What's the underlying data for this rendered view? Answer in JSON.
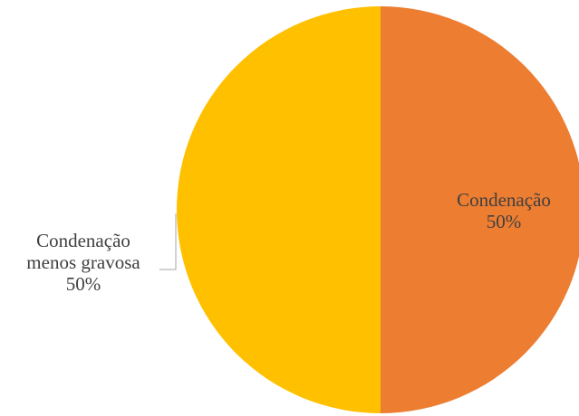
{
  "chart_data": {
    "type": "pie",
    "slices": [
      {
        "name": "Condenação",
        "value": 50,
        "percent_label": "50%",
        "color": "#ED7D31",
        "label_lines": [
          "Condenação"
        ]
      },
      {
        "name": "Condenação menos gravosa",
        "value": 50,
        "percent_label": "50%",
        "color": "#FFC000",
        "label_lines": [
          "Condenação",
          "menos gravosa"
        ]
      }
    ],
    "legend": false,
    "start_angle": "12 o'clock",
    "direction": "clockwise"
  }
}
